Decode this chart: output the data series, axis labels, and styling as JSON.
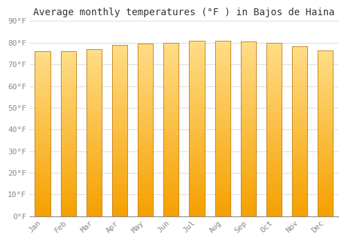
{
  "title": "Average monthly temperatures (°F ) in Bajos de Haina",
  "months": [
    "Jan",
    "Feb",
    "Mar",
    "Apr",
    "May",
    "Jun",
    "Jul",
    "Aug",
    "Sep",
    "Oct",
    "Nov",
    "Dec"
  ],
  "values": [
    76.0,
    76.0,
    77.0,
    79.0,
    79.5,
    80.0,
    81.0,
    81.0,
    80.5,
    80.0,
    78.5,
    76.5
  ],
  "bar_color_bottom": "#F5A623",
  "bar_color_top": "#FFD966",
  "bar_edge_color": "#C8861A",
  "ylim": [
    0,
    90
  ],
  "yticks": [
    0,
    10,
    20,
    30,
    40,
    50,
    60,
    70,
    80,
    90
  ],
  "ytick_labels": [
    "0°F",
    "10°F",
    "20°F",
    "30°F",
    "40°F",
    "50°F",
    "60°F",
    "70°F",
    "80°F",
    "90°F"
  ],
  "background_color": "#FFFFFF",
  "grid_color": "#DDDDDD",
  "title_fontsize": 10,
  "tick_fontsize": 8,
  "font_family": "monospace",
  "bar_width": 0.6
}
